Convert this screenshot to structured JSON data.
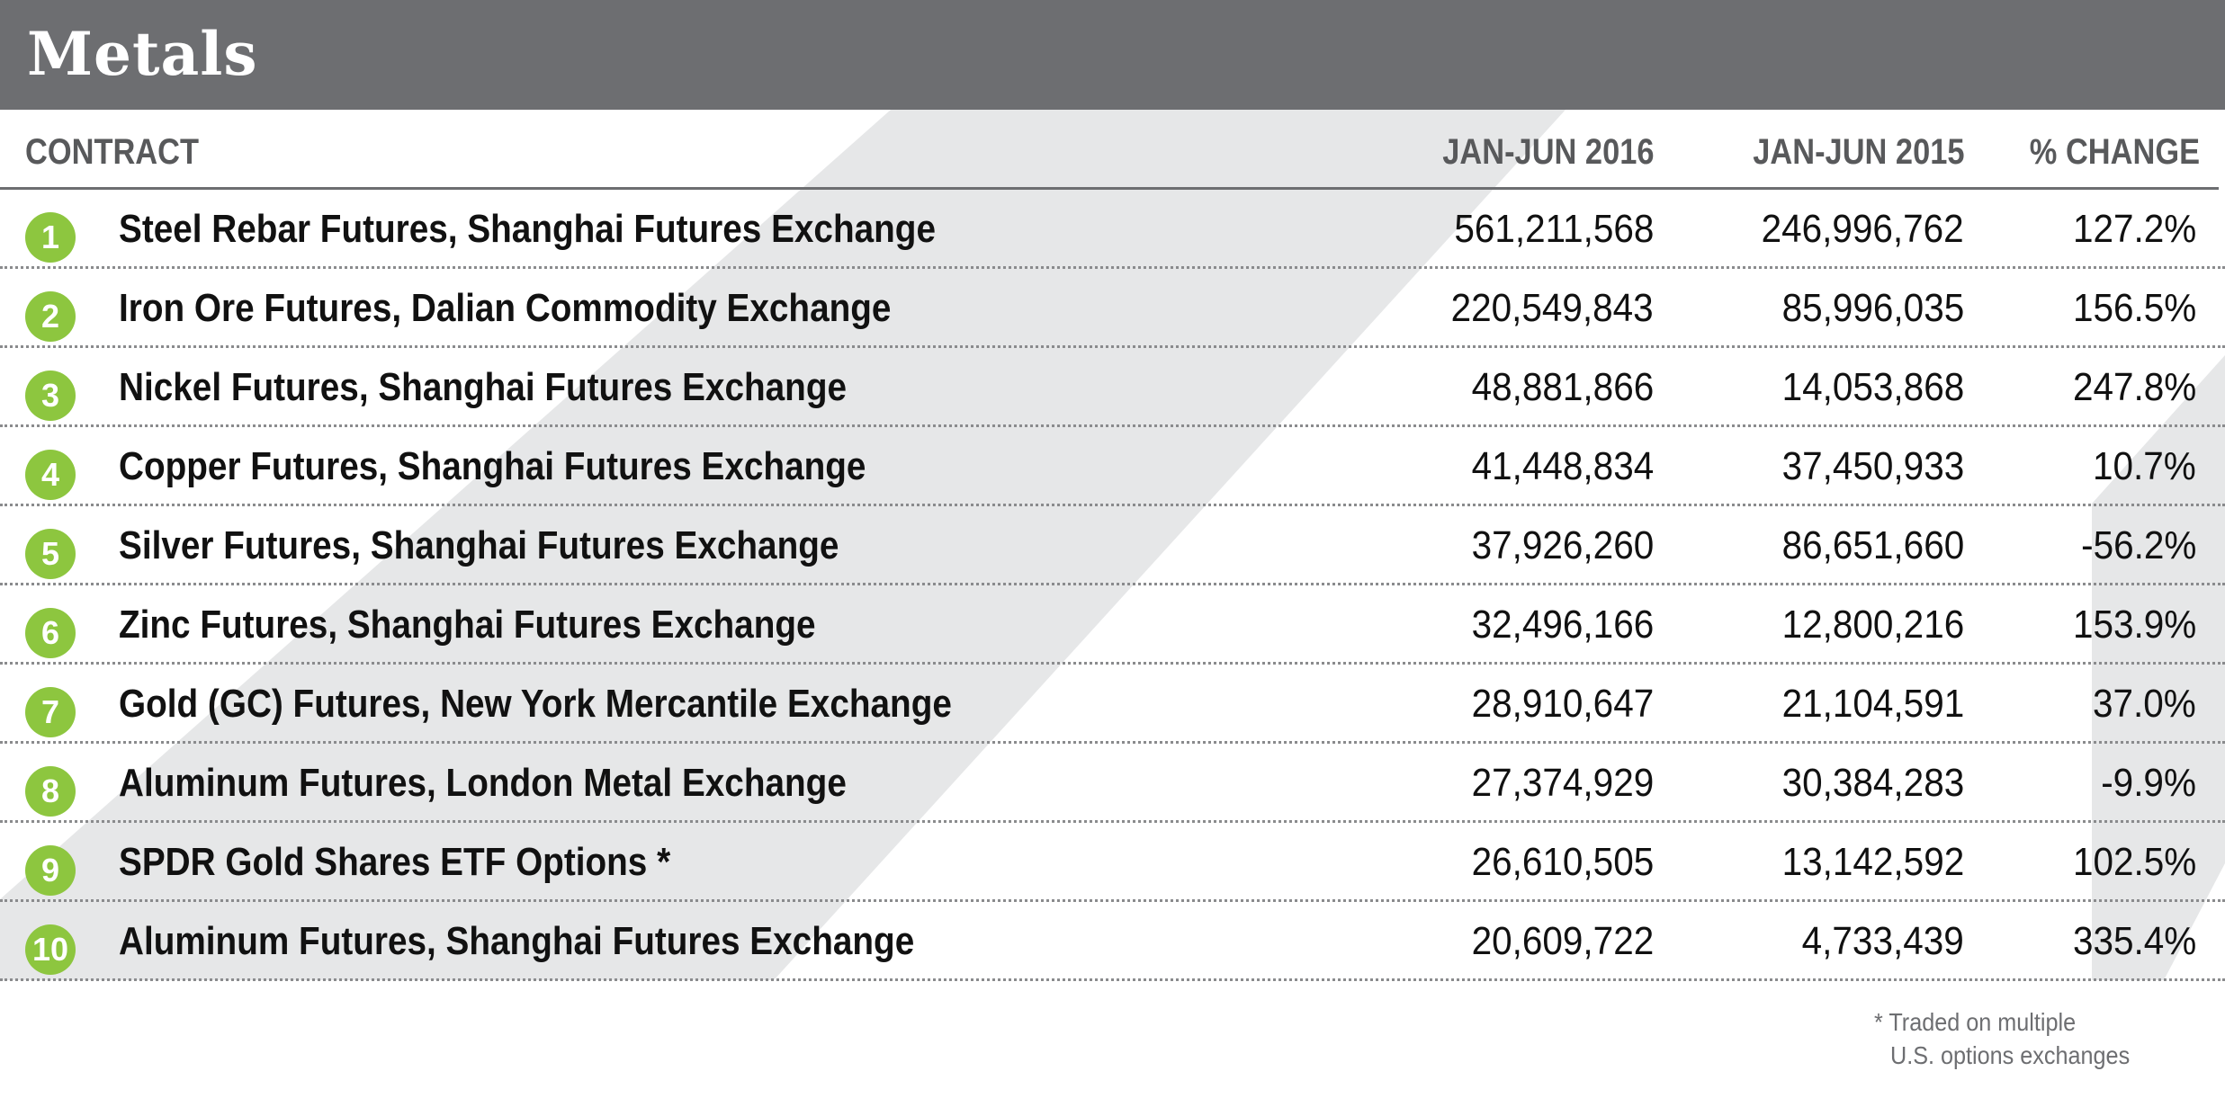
{
  "title": "Metals",
  "headers": {
    "contract": "CONTRACT",
    "col_2016": "JAN-JUN 2016",
    "col_2015": "JAN-JUN 2015",
    "change": "% CHANGE"
  },
  "rows": [
    {
      "rank": "1",
      "contract": "Steel Rebar Futures, Shanghai Futures Exchange",
      "v2016": "561,211,568",
      "v2015": "246,996,762",
      "change": "127.2%"
    },
    {
      "rank": "2",
      "contract": "Iron Ore Futures, Dalian Commodity Exchange",
      "v2016": "220,549,843",
      "v2015": "85,996,035",
      "change": "156.5%"
    },
    {
      "rank": "3",
      "contract": "Nickel Futures, Shanghai Futures Exchange",
      "v2016": "48,881,866",
      "v2015": "14,053,868",
      "change": "247.8%"
    },
    {
      "rank": "4",
      "contract": "Copper Futures, Shanghai Futures Exchange",
      "v2016": "41,448,834",
      "v2015": "37,450,933",
      "change": "10.7%"
    },
    {
      "rank": "5",
      "contract": "Silver Futures, Shanghai Futures Exchange",
      "v2016": "37,926,260",
      "v2015": "86,651,660",
      "change": "-56.2%"
    },
    {
      "rank": "6",
      "contract": "Zinc Futures, Shanghai Futures Exchange",
      "v2016": "32,496,166",
      "v2015": "12,800,216",
      "change": "153.9%"
    },
    {
      "rank": "7",
      "contract": "Gold (GC) Futures, New York Mercantile Exchange",
      "v2016": "28,910,647",
      "v2015": "21,104,591",
      "change": "37.0%"
    },
    {
      "rank": "8",
      "contract": "Aluminum Futures, London Metal Exchange",
      "v2016": "27,374,929",
      "v2015": "30,384,283",
      "change": "-9.9%"
    },
    {
      "rank": "9",
      "contract": "SPDR Gold Shares ETF Options *",
      "v2016": "26,610,505",
      "v2015": "13,142,592",
      "change": "102.5%"
    },
    {
      "rank": "10",
      "contract": "Aluminum Futures, Shanghai Futures Exchange",
      "v2016": "20,609,722",
      "v2015": "4,733,439",
      "change": "335.4%"
    }
  ],
  "footnote": {
    "line1": "* Traded on multiple",
    "line2": "U.S. options exchanges"
  },
  "colors": {
    "title_bar": "#6d6e71",
    "rank_badge": "#8dc63f",
    "stripe": "#e6e7e8"
  }
}
